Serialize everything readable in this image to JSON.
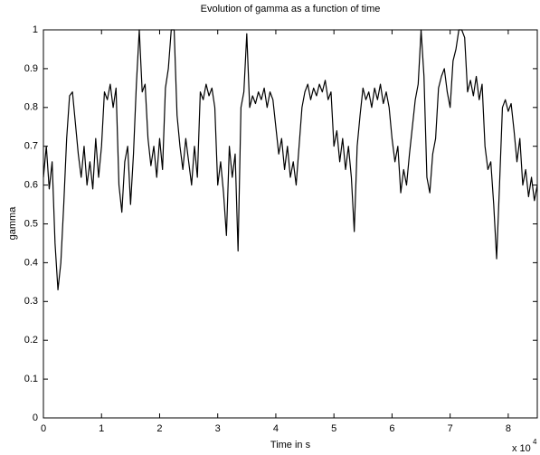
{
  "chart_data": {
    "type": "line",
    "title": "Evolution of gamma as a function of time",
    "xlabel": "Time in s",
    "ylabel": "gamma",
    "x_multiplier": {
      "base": "x 10",
      "exponent": "4"
    },
    "color": "#000000",
    "xlim": [
      0,
      85000
    ],
    "ylim": [
      0,
      1
    ],
    "xticks": [
      0,
      {
        "value": 10000,
        "label": "1"
      },
      {
        "value": 20000,
        "label": "2"
      },
      {
        "value": 30000,
        "label": "3"
      },
      {
        "value": 40000,
        "label": "4"
      },
      {
        "value": 50000,
        "label": "5"
      },
      {
        "value": 60000,
        "label": "6"
      },
      {
        "value": 70000,
        "label": "7"
      },
      {
        "value": 80000,
        "label": "8"
      }
    ],
    "yticks": [
      0,
      0.1,
      0.2,
      0.3,
      0.4,
      0.5,
      0.6,
      0.7,
      0.8,
      0.9,
      1
    ],
    "grid": false,
    "x": [
      0,
      500,
      1000,
      1500,
      2000,
      2500,
      3000,
      3500,
      4000,
      4500,
      5000,
      5500,
      6000,
      6500,
      7000,
      7500,
      8000,
      8500,
      9000,
      9500,
      10000,
      10500,
      11000,
      11500,
      12000,
      12500,
      13000,
      13500,
      14000,
      14500,
      15000,
      15500,
      16000,
      16500,
      17000,
      17500,
      18000,
      18500,
      19000,
      19500,
      20000,
      20500,
      21000,
      21500,
      22000,
      22500,
      23000,
      23500,
      24000,
      24500,
      25000,
      25500,
      26000,
      26500,
      27000,
      27500,
      28000,
      28500,
      29000,
      29500,
      30000,
      30500,
      31000,
      31500,
      32000,
      32500,
      33000,
      33500,
      34000,
      34500,
      35000,
      35500,
      36000,
      36500,
      37000,
      37500,
      38000,
      38500,
      39000,
      39500,
      40000,
      40500,
      41000,
      41500,
      42000,
      42500,
      43000,
      43500,
      44000,
      44500,
      45000,
      45500,
      46000,
      46500,
      47000,
      47500,
      48000,
      48500,
      49000,
      49500,
      50000,
      50500,
      51000,
      51500,
      52000,
      52500,
      53000,
      53500,
      54000,
      54500,
      55000,
      55500,
      56000,
      56500,
      57000,
      57500,
      58000,
      58500,
      59000,
      59500,
      60000,
      60500,
      61000,
      61500,
      62000,
      62500,
      63000,
      63500,
      64000,
      64500,
      65000,
      65500,
      66000,
      66500,
      67000,
      67500,
      68000,
      68500,
      69000,
      69500,
      70000,
      70500,
      71000,
      71500,
      72000,
      72500,
      73000,
      73500,
      74000,
      74500,
      75000,
      75500,
      76000,
      76500,
      77000,
      77500,
      78000,
      78500,
      79000,
      79500,
      80000,
      80500,
      81000,
      81500,
      82000,
      82500,
      83000,
      83500,
      84000,
      84500,
      85000
    ],
    "values": [
      0.62,
      0.7,
      0.59,
      0.66,
      0.45,
      0.33,
      0.4,
      0.55,
      0.72,
      0.83,
      0.84,
      0.76,
      0.68,
      0.62,
      0.7,
      0.6,
      0.66,
      0.59,
      0.72,
      0.62,
      0.7,
      0.84,
      0.82,
      0.86,
      0.8,
      0.85,
      0.6,
      0.53,
      0.66,
      0.7,
      0.55,
      0.68,
      0.86,
      1.0,
      0.84,
      0.86,
      0.72,
      0.65,
      0.7,
      0.62,
      0.72,
      0.64,
      0.85,
      0.9,
      1.0,
      1.0,
      0.78,
      0.7,
      0.64,
      0.72,
      0.66,
      0.6,
      0.7,
      0.62,
      0.84,
      0.82,
      0.86,
      0.83,
      0.85,
      0.8,
      0.6,
      0.66,
      0.58,
      0.47,
      0.7,
      0.62,
      0.68,
      0.43,
      0.8,
      0.84,
      0.99,
      0.8,
      0.83,
      0.81,
      0.84,
      0.82,
      0.85,
      0.8,
      0.84,
      0.82,
      0.75,
      0.68,
      0.72,
      0.64,
      0.7,
      0.62,
      0.66,
      0.6,
      0.7,
      0.8,
      0.84,
      0.86,
      0.82,
      0.85,
      0.83,
      0.86,
      0.84,
      0.87,
      0.82,
      0.84,
      0.7,
      0.74,
      0.66,
      0.72,
      0.64,
      0.7,
      0.62,
      0.48,
      0.7,
      0.78,
      0.85,
      0.82,
      0.84,
      0.8,
      0.85,
      0.82,
      0.86,
      0.81,
      0.84,
      0.8,
      0.72,
      0.66,
      0.7,
      0.58,
      0.64,
      0.6,
      0.68,
      0.75,
      0.82,
      0.86,
      1.0,
      0.88,
      0.62,
      0.58,
      0.68,
      0.72,
      0.85,
      0.88,
      0.9,
      0.84,
      0.8,
      0.92,
      0.95,
      1.0,
      1.0,
      0.98,
      0.84,
      0.87,
      0.83,
      0.88,
      0.82,
      0.86,
      0.7,
      0.64,
      0.66,
      0.55,
      0.41,
      0.6,
      0.8,
      0.82,
      0.79,
      0.81,
      0.74,
      0.66,
      0.72,
      0.6,
      0.64,
      0.57,
      0.62,
      0.56,
      0.6
    ]
  }
}
